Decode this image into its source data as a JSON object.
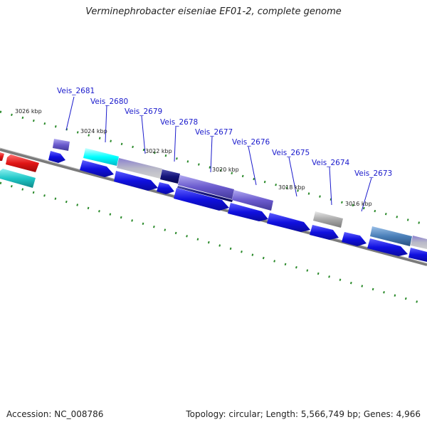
{
  "title": "Verminephrobacter eiseniae EF01-2, complete genome",
  "footer": {
    "accession": "Accession: NC_008786",
    "summary": "Topology: circular; Length: 5,566,749 bp; Genes: 4,966"
  },
  "kbp_labels": [
    "3026 kbp",
    "3024 kbp",
    "3022 kbp",
    "3020 kbp",
    "3018 kbp",
    "3016 kbp"
  ],
  "gene_labels": [
    "Veis_2681",
    "Veis_2680",
    "Veis_2679",
    "Veis_2678",
    "Veis_2677",
    "Veis_2676",
    "Veis_2675",
    "Veis_2674",
    "Veis_2673"
  ],
  "colors": {
    "backbone": "#7a7a7a",
    "tick": "#2a8a2a",
    "label": "#1a1acc",
    "gene_blue": "#1010e0",
    "gene_red": "#e01515",
    "gene_cyan": "#20c8c8",
    "gene_lightcyan": "#00ffff",
    "gene_slate": "#6a5acd",
    "gene_navy": "#14147a",
    "gene_gray": "#a8a8a8",
    "gene_steel": "#4a7fb8"
  }
}
